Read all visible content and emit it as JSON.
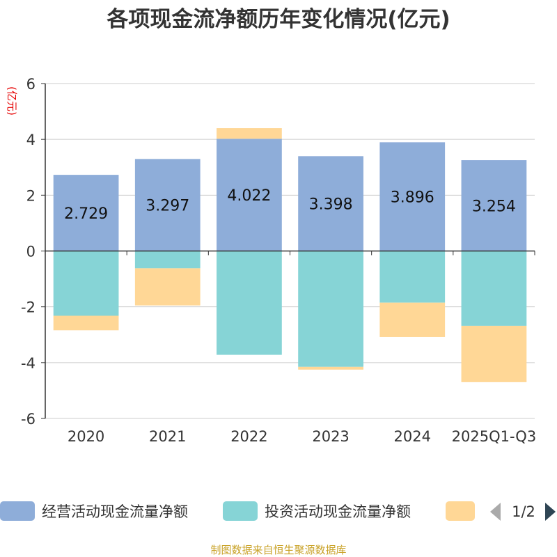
{
  "chart_data": {
    "type": "bar",
    "stacked": true,
    "title": "各项现金流净额历年变化情况(亿元)",
    "ylabel": "(亿元)",
    "xlabel": "",
    "ylim": [
      -6,
      6
    ],
    "yticks": [
      6,
      4,
      2,
      0,
      -2,
      -4,
      -6
    ],
    "grid": true,
    "legend_position": "bottom",
    "categories": [
      "2020",
      "2021",
      "2022",
      "2023",
      "2024",
      "2025Q1-Q3"
    ],
    "series": [
      {
        "name": "经营活动现金流量净额",
        "color": "#8eadd9",
        "values": [
          2.729,
          3.297,
          4.022,
          3.398,
          3.896,
          3.254
        ],
        "labels": [
          "2.729",
          "3.297",
          "4.022",
          "3.398",
          "3.896",
          "3.254"
        ]
      },
      {
        "name": "投资活动现金流量净额",
        "color": "#86d4d6",
        "values": [
          -2.32,
          -0.62,
          -3.72,
          -4.15,
          -1.85,
          -2.68
        ]
      },
      {
        "name": "",
        "color": "#ffd796",
        "values": [
          -0.52,
          -1.33,
          0.38,
          -0.1,
          -1.23,
          -2.02
        ]
      }
    ]
  },
  "legend": {
    "page": "1/2",
    "prev_icon": "triangle-left-icon",
    "next_icon": "triangle-right-icon",
    "prev_color": "#aaaaaa",
    "next_color": "#2f4554"
  },
  "source": "制图数据来自恒生聚源数据库"
}
